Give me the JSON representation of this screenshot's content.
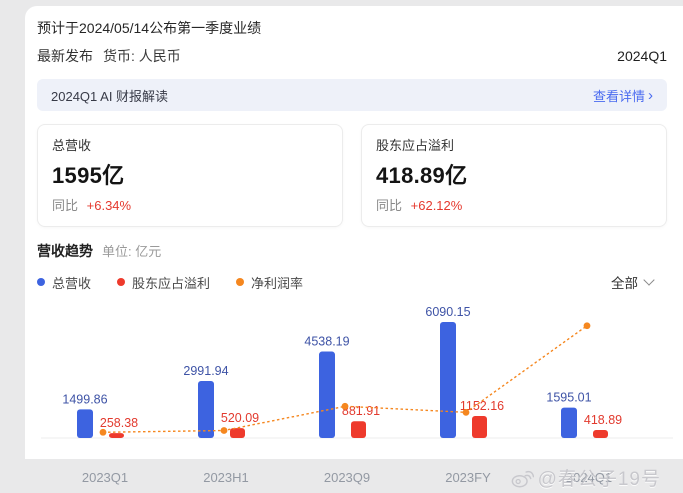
{
  "header": {
    "announcement": "预计于2024/05/14公布第一季度业绩",
    "latest_label": "最新发布",
    "currency_label": "货币: 人民币",
    "period": "2024Q1"
  },
  "ai_banner": {
    "title": "2024Q1 AI 财报解读",
    "link_label": "查看详情",
    "chevron": "›"
  },
  "summary_cards": [
    {
      "title": "总营收",
      "value": "1595亿",
      "yoy_label": "同比",
      "yoy_value": "+6.34%"
    },
    {
      "title": "股东应占溢利",
      "value": "418.89亿",
      "yoy_label": "同比",
      "yoy_value": "+62.12%"
    }
  ],
  "trend_section": {
    "title": "营收趋势",
    "unit": "单位: 亿元",
    "filter_label": "全部",
    "legend": [
      {
        "label": "总营收",
        "color": "#3d63e0"
      },
      {
        "label": "股东应占溢利",
        "color": "#ee3a2c"
      },
      {
        "label": "净利润率",
        "color": "#f5871f"
      }
    ]
  },
  "chart_data": {
    "type": "bar",
    "categories": [
      "2023Q1",
      "2023H1",
      "2023Q9",
      "2023FY",
      "2024Q1"
    ],
    "series": [
      {
        "name": "总营收",
        "type": "bar",
        "color": "#3d63e0",
        "values": [
          1499.86,
          2991.94,
          4538.19,
          6090.15,
          1595.01
        ]
      },
      {
        "name": "股东应占溢利",
        "type": "bar",
        "color": "#ee3a2c",
        "values": [
          258.38,
          520.09,
          881.91,
          1152.16,
          418.89
        ]
      },
      {
        "name": "净利润率",
        "type": "line",
        "color": "#f5871f",
        "unit": "%",
        "values": [
          17.23,
          17.38,
          19.43,
          18.92,
          26.26
        ]
      }
    ],
    "title": "营收趋势",
    "xlabel": "",
    "ylabel": "亿元",
    "grid": false,
    "legend_position": "top-left",
    "value_labels": true
  },
  "watermark": {
    "text": "@春公子19号"
  },
  "colors": {
    "bar_blue": "#3d63e0",
    "bar_red": "#ee3a2c",
    "line_orange": "#f5871f",
    "link_blue": "#4a6bf0",
    "yoy_red": "#e5392e",
    "banner_bg": "#eef1f9"
  }
}
